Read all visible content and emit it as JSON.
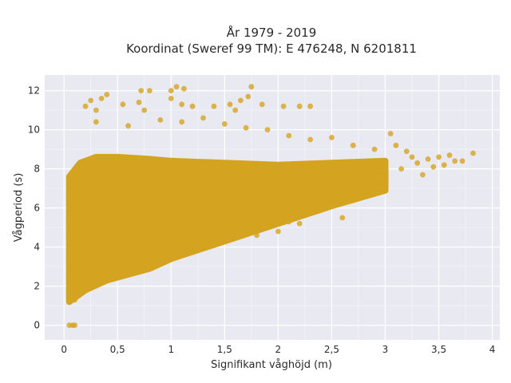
{
  "chart_data": {
    "type": "scatter",
    "title": [
      "År 1979 - 2019",
      "Koordinat (Sweref 99 TM): E 476248, N 6201811"
    ],
    "xlabel": "Signifikant våghöjd (m)",
    "ylabel": "Vågperiod (s)",
    "xlim": [
      -0.18,
      4.07
    ],
    "ylim": [
      -0.75,
      12.8
    ],
    "x_ticks": [
      0,
      0.5,
      1,
      1.5,
      2,
      2.5,
      3,
      3.5,
      4
    ],
    "x_tick_labels": [
      "0",
      "0,5",
      "1",
      "1,5",
      "2",
      "2,5",
      "3",
      "3,5",
      "4"
    ],
    "y_ticks": [
      0,
      2,
      4,
      6,
      8,
      10,
      12
    ],
    "y_tick_labels": [
      "0",
      "2",
      "4",
      "6",
      "8",
      "10",
      "12"
    ],
    "grid": true,
    "background_color": "#e9e9f2",
    "marker_color": "#d4a420",
    "series": [
      {
        "values_outline_upper": [
          [
            0.05,
            7.6
          ],
          [
            0.15,
            8.3
          ],
          [
            0.3,
            8.6
          ],
          [
            0.5,
            8.6
          ],
          [
            0.8,
            8.5
          ],
          [
            1.0,
            8.4
          ],
          [
            1.5,
            8.3
          ],
          [
            2.0,
            8.2
          ],
          [
            2.5,
            8.3
          ],
          [
            3.0,
            8.4
          ]
        ],
        "values_outline_lower": [
          [
            0.05,
            1.2
          ],
          [
            0.2,
            1.8
          ],
          [
            0.4,
            2.3
          ],
          [
            0.6,
            2.6
          ],
          [
            0.8,
            2.9
          ],
          [
            1.0,
            3.4
          ],
          [
            1.5,
            4.3
          ],
          [
            2.0,
            5.2
          ],
          [
            2.5,
            6.1
          ],
          [
            3.0,
            6.9
          ]
        ],
        "points": [
          [
            0.05,
            0.0
          ],
          [
            0.08,
            0.0
          ],
          [
            0.1,
            0.0
          ],
          [
            0.05,
            1.2
          ],
          [
            0.07,
            1.4
          ],
          [
            0.1,
            1.3
          ],
          [
            0.12,
            1.5
          ],
          [
            0.2,
            11.2
          ],
          [
            0.25,
            11.5
          ],
          [
            0.3,
            11.0
          ],
          [
            0.35,
            11.6
          ],
          [
            0.4,
            11.8
          ],
          [
            0.55,
            11.3
          ],
          [
            0.7,
            11.4
          ],
          [
            0.75,
            11.0
          ],
          [
            0.72,
            12.0
          ],
          [
            0.8,
            12.0
          ],
          [
            1.0,
            12.0
          ],
          [
            1.05,
            12.2
          ],
          [
            1.12,
            12.1
          ],
          [
            1.0,
            11.6
          ],
          [
            1.1,
            11.3
          ],
          [
            1.2,
            11.2
          ],
          [
            1.4,
            11.2
          ],
          [
            1.55,
            11.3
          ],
          [
            1.6,
            11.0
          ],
          [
            1.65,
            11.5
          ],
          [
            1.72,
            11.7
          ],
          [
            1.75,
            12.2
          ],
          [
            1.85,
            11.3
          ],
          [
            2.05,
            11.2
          ],
          [
            2.2,
            11.2
          ],
          [
            2.3,
            11.2
          ],
          [
            0.3,
            10.4
          ],
          [
            0.6,
            10.2
          ],
          [
            0.9,
            10.5
          ],
          [
            1.1,
            10.4
          ],
          [
            1.3,
            10.6
          ],
          [
            1.5,
            10.3
          ],
          [
            1.7,
            10.1
          ],
          [
            1.9,
            10.0
          ],
          [
            2.1,
            9.7
          ],
          [
            2.3,
            9.5
          ],
          [
            2.5,
            9.6
          ],
          [
            2.7,
            9.2
          ],
          [
            2.9,
            9.0
          ],
          [
            3.05,
            9.8
          ],
          [
            3.1,
            9.2
          ],
          [
            3.2,
            8.9
          ],
          [
            3.25,
            8.6
          ],
          [
            3.3,
            8.3
          ],
          [
            3.35,
            7.7
          ],
          [
            3.4,
            8.5
          ],
          [
            3.45,
            8.1
          ],
          [
            3.5,
            8.6
          ],
          [
            3.55,
            8.2
          ],
          [
            3.6,
            8.7
          ],
          [
            3.65,
            8.4
          ],
          [
            3.72,
            8.4
          ],
          [
            3.82,
            8.8
          ],
          [
            2.6,
            5.5
          ],
          [
            2.2,
            5.2
          ],
          [
            1.8,
            4.6
          ],
          [
            2.0,
            4.8
          ],
          [
            2.1,
            5.3
          ],
          [
            3.0,
            7.9
          ],
          [
            2.95,
            7.5
          ],
          [
            3.15,
            8.0
          ]
        ]
      }
    ]
  }
}
